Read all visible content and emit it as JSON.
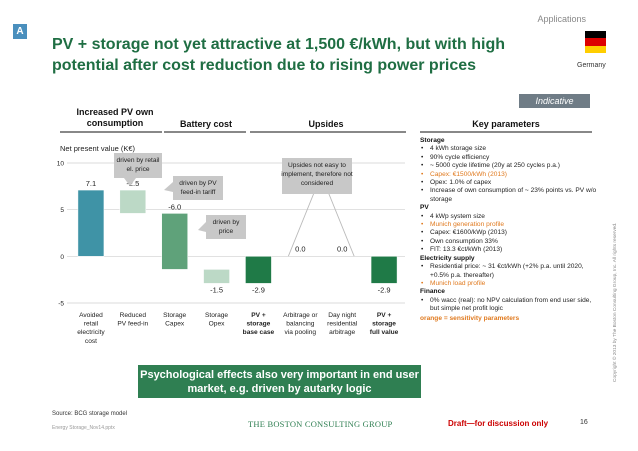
{
  "badge": "A",
  "section_label": "Applications",
  "title": "PV + storage not yet attractive at 1,500 €/kWh, but with high potential after cost reduction due to rising power prices",
  "country": "Germany",
  "indicative_label": "Indicative",
  "headers": {
    "increased_pv": "Increased PV own consumption",
    "battery_cost": "Battery cost",
    "upsides": "Upsides",
    "key_parameters": "Key parameters"
  },
  "colors": {
    "green_dark": "#1f7a47",
    "green_mid": "#5fa27a",
    "green_light": "#bcd9c6",
    "teal": "#3f93a6",
    "title_green": "#1f6e43",
    "callout_bg": "#c8c8c8",
    "highlight": "#e07a1f"
  },
  "chart_data": {
    "type": "bar",
    "title": "",
    "ylabel": "Net present value (K€)",
    "ylim": [
      -5,
      10
    ],
    "yticks": [
      -5,
      0,
      5,
      10
    ],
    "categories": [
      "Avoided retail electricity cost",
      "Reduced PV feed-in",
      "Storage Capex",
      "Storage Opex",
      "PV + storage base case",
      "Arbitrage or balancing via pooling",
      "Day night residential arbitrage",
      "PV + storage full value"
    ],
    "bold_categories": [
      4,
      7
    ],
    "values": [
      7.1,
      -2.5,
      -6.0,
      -1.5,
      -2.9,
      0.0,
      0.0,
      -2.9
    ],
    "value_labels": [
      "7.1",
      "-2.5",
      "-6.0",
      "-1.5",
      "-2.9",
      "0.0",
      "0.0",
      "-2.9"
    ],
    "kinds": [
      "delta",
      "delta",
      "delta",
      "delta",
      "total",
      "delta",
      "delta",
      "total"
    ],
    "bar_colors": [
      "#3f93a6",
      "#bcd9c6",
      "#5fa27a",
      "#bcd9c6",
      "#1f7a47",
      "#ffffff",
      "#ffffff",
      "#1f7a47"
    ],
    "annotations": [
      "driven by retail el. price",
      "driven by PV feed-in tariff",
      "driven by price",
      "Upsides not easy to implement, therefore not considered"
    ]
  },
  "params": {
    "storage": {
      "heading": "Storage",
      "items": [
        {
          "text": "4 kWh storage size",
          "highlight": false
        },
        {
          "text": "90% cycle efficiency",
          "highlight": false
        },
        {
          "text": "~ 5000 cycle lifetime (20y at 250 cycles p.a.)",
          "highlight": false
        },
        {
          "text": "Capex: €1500/kWh (2013)",
          "highlight": true
        },
        {
          "text": "Opex: 1.0% of capex",
          "highlight": false
        },
        {
          "text": "Increase of own consumption of ~ 23% points vs. PV w/o storage",
          "highlight": false
        }
      ]
    },
    "pv": {
      "heading": "PV",
      "items": [
        {
          "text": "4 kWp system size",
          "highlight": false
        },
        {
          "text": "Munich generation profile",
          "highlight": true
        },
        {
          "text": "Capex: €1600/kWp (2013)",
          "highlight": false
        },
        {
          "text": "Own consumption 33%",
          "highlight": false
        },
        {
          "text": "FIT: 13.3 €ct/kWh (2013)",
          "highlight": false
        }
      ]
    },
    "electricity": {
      "heading": "Electricity supply",
      "items": [
        {
          "text": "Residential price: ~ 31 €ct/kWh (+2% p.a. until 2020, +0.5% p.a. thereafter)",
          "highlight": false
        },
        {
          "text": "Munich load profile",
          "highlight": true
        }
      ]
    },
    "finance": {
      "heading": "Finance",
      "items": [
        {
          "text": "0% wacc (real): no NPV calculation from end user side, but simple net profit logic",
          "highlight": false
        }
      ]
    },
    "note": "orange = sensitivity parameters"
  },
  "copyright": "Copyright © 2013 by The Boston Consulting Group, Inc. All rights reserved.",
  "banner": "Psychological effects also very important in end user market, e.g. driven by autarky logic",
  "source": "Source: BCG storage model",
  "filename": "Energy Storage_Nov14.pptx",
  "company": "THE BOSTON CONSULTING GROUP",
  "draft": "Draft—for discussion only",
  "page_number": "16"
}
